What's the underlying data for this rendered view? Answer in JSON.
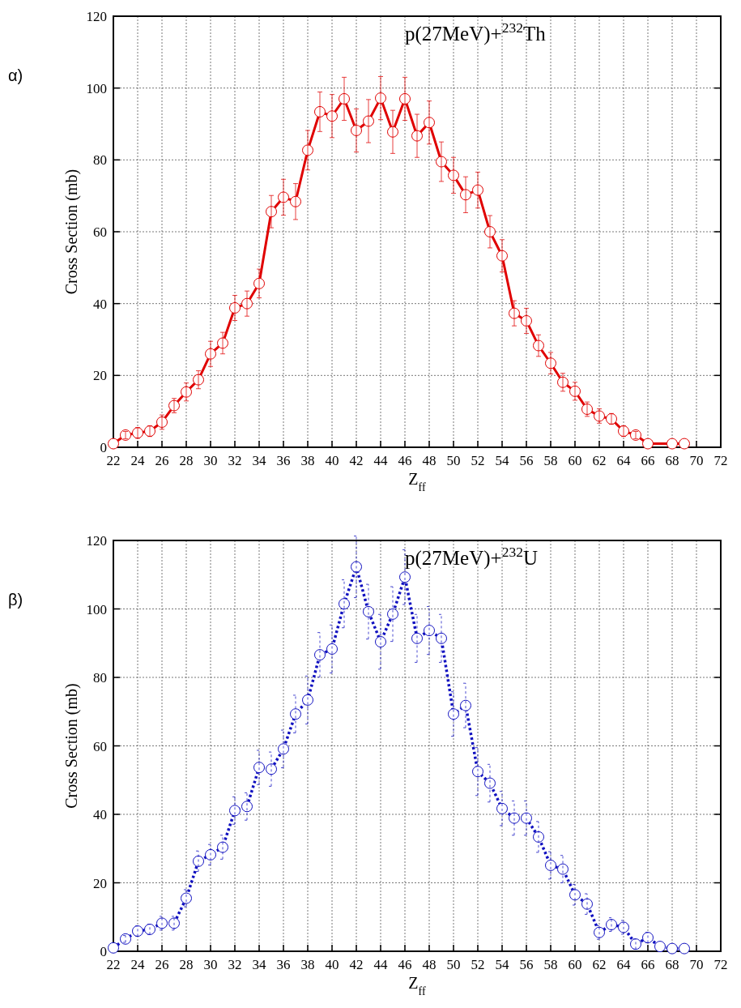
{
  "chart_data": [
    {
      "type": "line",
      "title": "p(27MeV)+$^{232}$Th",
      "annotations": [
        "α)"
      ],
      "xlabel": "Z$_{ff}$",
      "ylabel": "Cross Section (mb)",
      "xlim": [
        22,
        72
      ],
      "xticks": [
        22,
        24,
        26,
        28,
        30,
        32,
        34,
        36,
        38,
        40,
        42,
        44,
        46,
        48,
        50,
        52,
        54,
        56,
        58,
        60,
        62,
        64,
        66,
        68,
        70,
        72
      ],
      "ylim": [
        0,
        120
      ],
      "yticks": [
        0,
        20,
        40,
        60,
        80,
        100,
        120
      ],
      "grid": true,
      "marker": "circle",
      "line_style": "solid",
      "series": [
        {
          "color": "#e00000",
          "x": [
            22,
            23,
            24,
            25,
            26,
            27,
            28,
            29,
            30,
            31,
            32,
            33,
            34,
            35,
            36,
            37,
            38,
            39,
            40,
            41,
            42,
            43,
            44,
            45,
            46,
            47,
            48,
            49,
            50,
            51,
            52,
            53,
            54,
            55,
            56,
            57,
            58,
            59,
            60,
            61,
            62,
            63,
            64,
            65,
            66,
            68,
            69
          ],
          "values": [
            1,
            3.4,
            4,
            4.5,
            7,
            11.6,
            15.4,
            18.8,
            26,
            29,
            38.8,
            40,
            45.6,
            65.6,
            69.6,
            68.4,
            82.7,
            93.4,
            92.2,
            97,
            88.2,
            90.8,
            97.2,
            87.8,
            97,
            86.7,
            90.4,
            79.5,
            75.7,
            70.3,
            71.6,
            60,
            53.3,
            37.3,
            35.2,
            28.3,
            23.4,
            18.1,
            15.6,
            10.6,
            8.7,
            7.9,
            4.5,
            3.4,
            1,
            1,
            1
          ],
          "errors": [
            null,
            1,
            1.5,
            1.5,
            2,
            2,
            2.5,
            2.5,
            3.5,
            3,
            3.5,
            3.5,
            4,
            4.5,
            5,
            5,
            5.5,
            5.5,
            6,
            6,
            6,
            6,
            6,
            6,
            6,
            6,
            6,
            5.5,
            5,
            5,
            5,
            4.5,
            4.5,
            3.5,
            3.5,
            3,
            3,
            2.5,
            2.5,
            2,
            2,
            1.5,
            1.5,
            1,
            null,
            null,
            null
          ]
        }
      ]
    },
    {
      "type": "line",
      "title": "p(27MeV)+$^{232}$U",
      "annotations": [
        "β)"
      ],
      "xlabel": "Z$_{ff}$",
      "ylabel": "Cross Section (mb)",
      "xlim": [
        22,
        72
      ],
      "xticks": [
        22,
        24,
        26,
        28,
        30,
        32,
        34,
        36,
        38,
        40,
        42,
        44,
        46,
        48,
        50,
        52,
        54,
        56,
        58,
        60,
        62,
        64,
        66,
        68,
        70,
        72
      ],
      "ylim": [
        0,
        120
      ],
      "yticks": [
        0,
        20,
        40,
        60,
        80,
        100,
        120
      ],
      "grid": true,
      "marker": "circle",
      "line_style": "dotted",
      "series": [
        {
          "color": "#1010c0",
          "x": [
            22,
            23,
            24,
            25,
            26,
            27,
            28,
            29,
            30,
            31,
            32,
            33,
            34,
            35,
            36,
            37,
            38,
            39,
            40,
            41,
            42,
            43,
            44,
            45,
            46,
            47,
            48,
            49,
            50,
            51,
            52,
            53,
            54,
            55,
            56,
            57,
            58,
            59,
            60,
            61,
            62,
            63,
            64,
            65,
            66,
            67,
            68,
            69
          ],
          "values": [
            1,
            3.6,
            5.9,
            6.4,
            8.2,
            8.2,
            15.5,
            26.3,
            28.2,
            30.4,
            41.1,
            42.3,
            53.7,
            53.2,
            59.1,
            69.3,
            73.4,
            86.6,
            88.3,
            101.5,
            112.3,
            99.2,
            90.4,
            98.5,
            109.3,
            91.4,
            93.7,
            91.4,
            69.3,
            71.8,
            52.5,
            49.1,
            41.7,
            38.9,
            38.9,
            33.4,
            25.1,
            24,
            16.5,
            13.8,
            5.5,
            7.8,
            7,
            2.1,
            4,
            1.4,
            0.8,
            0.8
          ],
          "errors": [
            null,
            1,
            1.5,
            1.5,
            2,
            2,
            2.5,
            3,
            3,
            3.5,
            4,
            4,
            5,
            5,
            5.5,
            5.5,
            7,
            6.5,
            7,
            7,
            9,
            8,
            8,
            8,
            8,
            7,
            7,
            7,
            6.5,
            6.5,
            7,
            5.5,
            5,
            5,
            5,
            4.5,
            4,
            4,
            3,
            3,
            2,
            2,
            2,
            1.5,
            1.5,
            null,
            null,
            null
          ]
        }
      ]
    }
  ]
}
